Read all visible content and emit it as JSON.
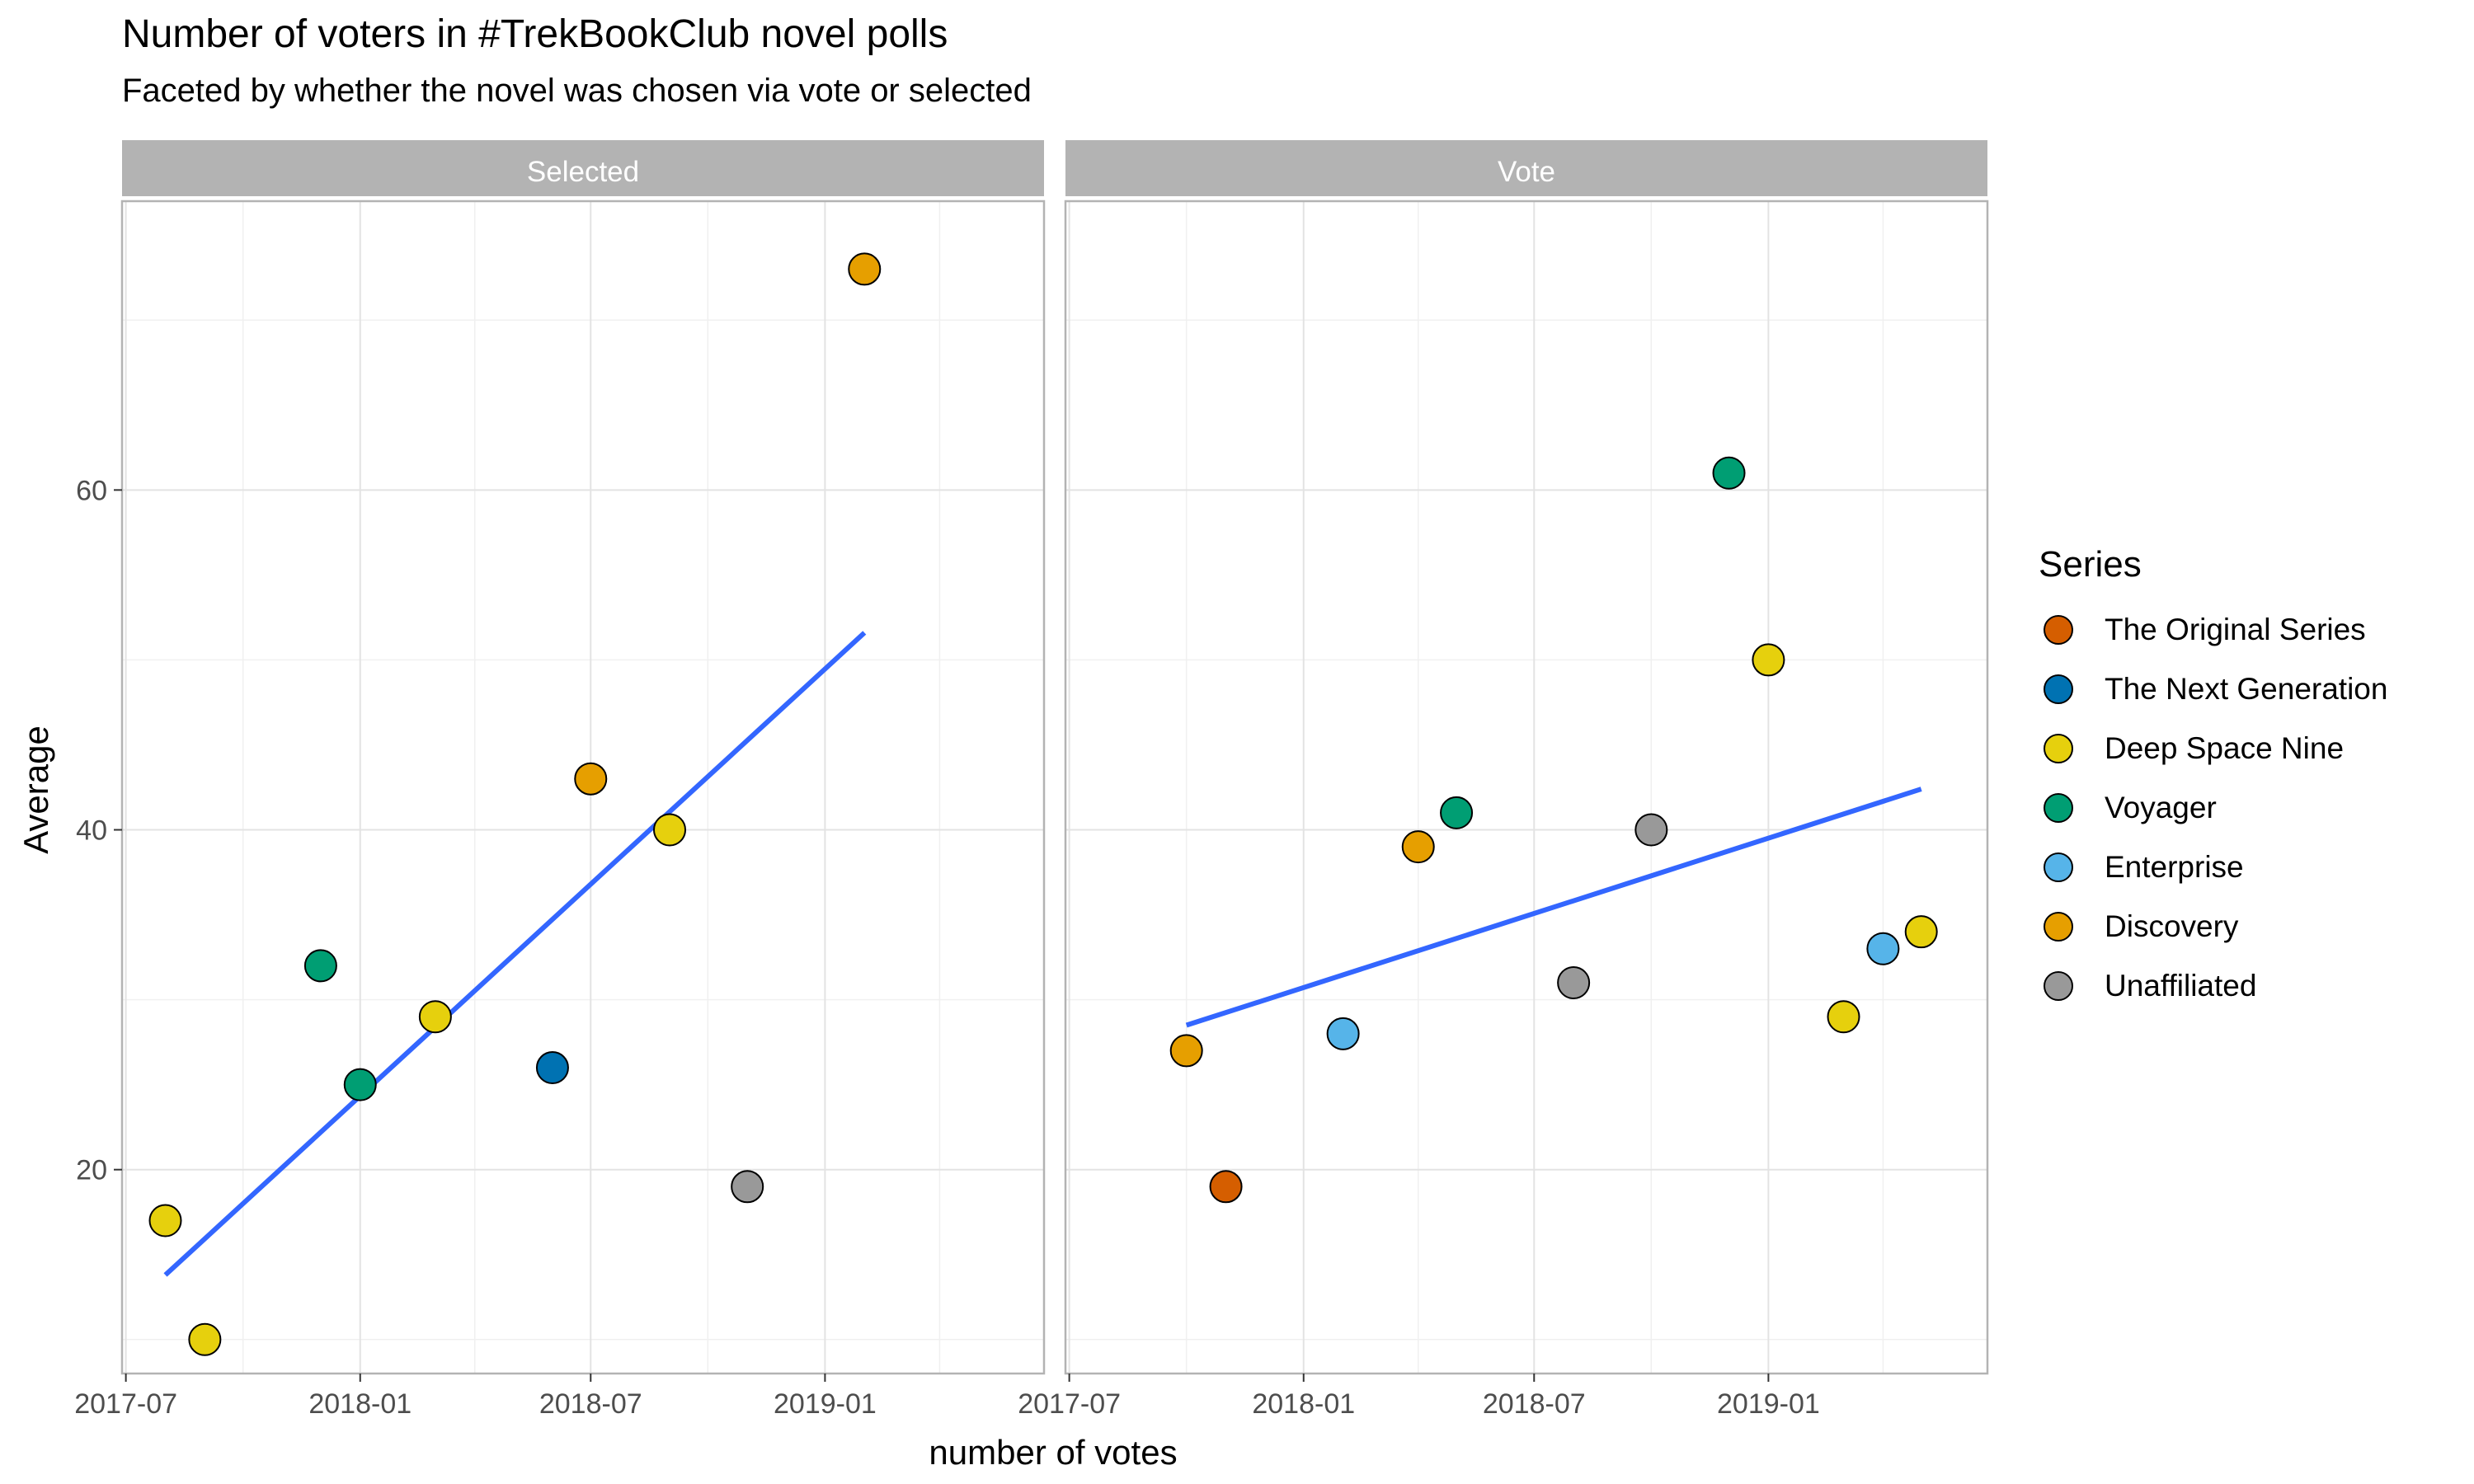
{
  "chart_data": {
    "type": "scatter",
    "title": "Number of voters in #TrekBookClub novel polls",
    "subtitle": "Faceted by whether the novel was chosen via vote or selected",
    "xlabel": "number of votes",
    "ylabel": "Average",
    "xlim": [
      "2017-06-28",
      "2019-06-22"
    ],
    "ylim": [
      8,
      77
    ],
    "x_ticks": [
      "2017-07",
      "2018-01",
      "2018-07",
      "2019-01"
    ],
    "y_ticks": [
      20,
      40,
      60
    ],
    "grid": true,
    "legend_title": "Series",
    "legend_position": "right",
    "series_colors": {
      "The Original Series": "#D55E00",
      "The Next Generation": "#0072B2",
      "Deep Space Nine": "#E6D00D",
      "Voyager": "#009E73",
      "Enterprise": "#56B4E9",
      "Discovery": "#E69F00",
      "Unaffiliated": "#999999"
    },
    "trend_color": "#3366FF",
    "facets": [
      {
        "label": "Selected",
        "points": [
          {
            "x": "2017-08-01",
            "y": 17,
            "series": "Deep Space Nine"
          },
          {
            "x": "2017-09-01",
            "y": 10,
            "series": "Deep Space Nine"
          },
          {
            "x": "2017-12-01",
            "y": 32,
            "series": "Voyager"
          },
          {
            "x": "2018-01-01",
            "y": 25,
            "series": "Voyager"
          },
          {
            "x": "2018-03-01",
            "y": 29,
            "series": "Deep Space Nine"
          },
          {
            "x": "2018-06-01",
            "y": 26,
            "series": "The Next Generation"
          },
          {
            "x": "2018-07-01",
            "y": 43,
            "series": "Discovery"
          },
          {
            "x": "2018-09-01",
            "y": 40,
            "series": "Deep Space Nine"
          },
          {
            "x": "2018-11-01",
            "y": 19,
            "series": "Unaffiliated"
          },
          {
            "x": "2019-02-01",
            "y": 73,
            "series": "Discovery"
          }
        ],
        "trend": [
          {
            "x": "2017-08-01",
            "y": 13.8
          },
          {
            "x": "2019-02-01",
            "y": 51.6
          }
        ]
      },
      {
        "label": "Vote",
        "points": [
          {
            "x": "2017-10-01",
            "y": 27,
            "series": "Discovery"
          },
          {
            "x": "2017-11-01",
            "y": 19,
            "series": "The Original Series"
          },
          {
            "x": "2018-02-01",
            "y": 28,
            "series": "Enterprise"
          },
          {
            "x": "2018-04-01",
            "y": 39,
            "series": "Discovery"
          },
          {
            "x": "2018-05-01",
            "y": 41,
            "series": "Voyager"
          },
          {
            "x": "2018-08-01",
            "y": 31,
            "series": "Unaffiliated"
          },
          {
            "x": "2018-10-01",
            "y": 40,
            "series": "Unaffiliated"
          },
          {
            "x": "2018-12-01",
            "y": 61,
            "series": "Voyager"
          },
          {
            "x": "2019-01-01",
            "y": 50,
            "series": "Deep Space Nine"
          },
          {
            "x": "2019-03-01",
            "y": 29,
            "series": "Deep Space Nine"
          },
          {
            "x": "2019-04-01",
            "y": 33,
            "series": "Enterprise"
          },
          {
            "x": "2019-05-01",
            "y": 34,
            "series": "Deep Space Nine"
          }
        ],
        "trend": [
          {
            "x": "2017-10-01",
            "y": 28.5
          },
          {
            "x": "2019-05-01",
            "y": 42.4
          }
        ]
      }
    ]
  }
}
